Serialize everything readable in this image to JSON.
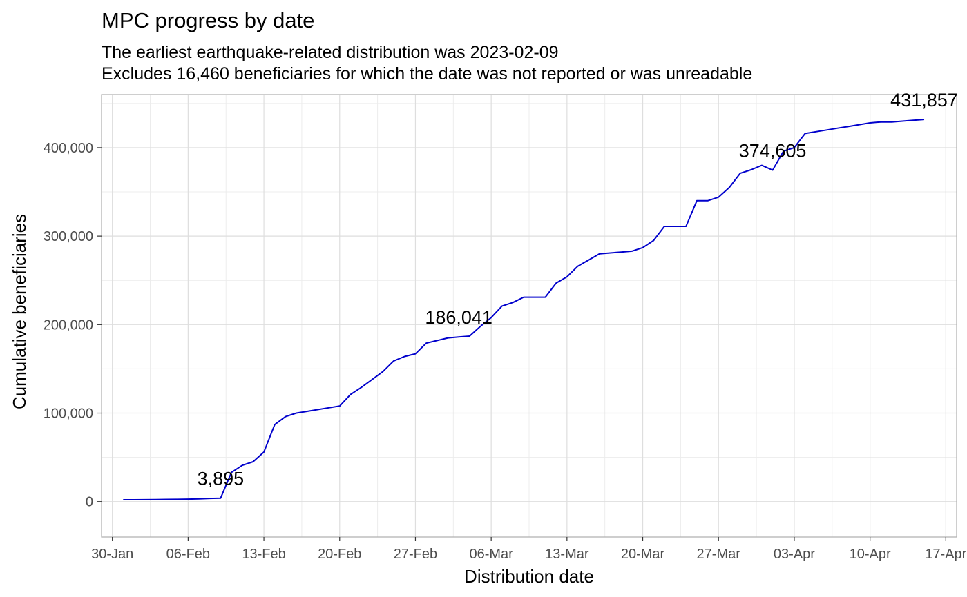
{
  "chart_data": {
    "type": "line",
    "title": "MPC progress by date",
    "subtitle": [
      "The earliest earthquake-related distribution was 2023-02-09",
      "Excludes 16,460 beneficiaries for which the date was not reported or was unreadable"
    ],
    "xlabel": "Distribution date",
    "ylabel": "Cumulative beneficiaries",
    "x_tick_labels": [
      "30-Jan",
      "06-Feb",
      "13-Feb",
      "20-Feb",
      "27-Feb",
      "06-Mar",
      "13-Mar",
      "20-Mar",
      "27-Mar",
      "03-Apr",
      "10-Apr",
      "17-Apr"
    ],
    "y_tick_labels": [
      "0",
      "100,000",
      "200,000",
      "300,000",
      "400,000"
    ],
    "y_ticks": [
      0,
      100000,
      200000,
      300000,
      400000
    ],
    "ylim": [
      -40000,
      460000
    ],
    "xlim": [
      "2023-01-29",
      "2023-04-18"
    ],
    "x_ticks": [
      "2023-01-30",
      "2023-02-06",
      "2023-02-13",
      "2023-02-20",
      "2023-02-27",
      "2023-03-06",
      "2023-03-13",
      "2023-03-20",
      "2023-03-27",
      "2023-04-03",
      "2023-04-10",
      "2023-04-17"
    ],
    "grid": true,
    "line_color": "#0000cc",
    "series": [
      {
        "x": [
          "2023-01-31",
          "2023-02-01",
          "2023-02-02",
          "2023-02-03",
          "2023-02-04",
          "2023-02-05",
          "2023-02-06",
          "2023-02-07",
          "2023-02-08",
          "2023-02-09",
          "2023-02-10",
          "2023-02-11",
          "2023-02-12",
          "2023-02-13",
          "2023-02-14",
          "2023-02-15",
          "2023-02-16",
          "2023-02-17",
          "2023-02-18",
          "2023-02-19",
          "2023-02-20",
          "2023-02-21",
          "2023-02-22",
          "2023-02-23",
          "2023-02-24",
          "2023-02-25",
          "2023-02-26",
          "2023-02-27",
          "2023-02-28",
          "2023-03-01",
          "2023-03-02",
          "2023-03-03",
          "2023-03-04",
          "2023-03-05",
          "2023-03-06",
          "2023-03-07",
          "2023-03-08",
          "2023-03-09",
          "2023-03-10",
          "2023-03-11",
          "2023-03-12",
          "2023-03-13",
          "2023-03-14",
          "2023-03-15",
          "2023-03-16",
          "2023-03-17",
          "2023-03-18",
          "2023-03-19",
          "2023-03-20",
          "2023-03-21",
          "2023-03-22",
          "2023-03-23",
          "2023-03-24",
          "2023-03-25",
          "2023-03-26",
          "2023-03-27",
          "2023-03-28",
          "2023-03-29",
          "2023-03-30",
          "2023-03-31",
          "2023-04-01",
          "2023-04-02",
          "2023-04-03",
          "2023-04-04",
          "2023-04-05",
          "2023-04-06",
          "2023-04-07",
          "2023-04-08",
          "2023-04-09",
          "2023-04-10",
          "2023-04-11",
          "2023-04-12",
          "2023-04-13",
          "2023-04-14",
          "2023-04-15"
        ],
        "values": [
          2100,
          2100,
          2200,
          2300,
          2500,
          2600,
          2800,
          3100,
          3600,
          3895,
          33000,
          41000,
          45000,
          56000,
          87000,
          96000,
          100000,
          102000,
          104000,
          106000,
          108000,
          121000,
          129000,
          138000,
          147000,
          159000,
          164000,
          167000,
          179000,
          182000,
          185000,
          186041,
          187000,
          198000,
          208000,
          221000,
          225000,
          231000,
          231000,
          231000,
          247000,
          254000,
          266000,
          273000,
          280000,
          281000,
          282000,
          283000,
          287000,
          295000,
          311000,
          311000,
          311000,
          340000,
          340000,
          344000,
          355000,
          371000,
          375000,
          380000,
          374605,
          396000,
          400000,
          416000,
          418000,
          420000,
          422000,
          424000,
          426000,
          428000,
          429000,
          429000,
          430000,
          431000,
          431857
        ]
      }
    ],
    "annotations": [
      {
        "x": "2023-02-09",
        "y": 3895,
        "text": "3,895"
      },
      {
        "x": "2023-03-03",
        "y": 186041,
        "text": "186,041"
      },
      {
        "x": "2023-04-01",
        "y": 374605,
        "text": "374,605"
      },
      {
        "x": "2023-04-15",
        "y": 431857,
        "text": "431,857"
      }
    ]
  }
}
